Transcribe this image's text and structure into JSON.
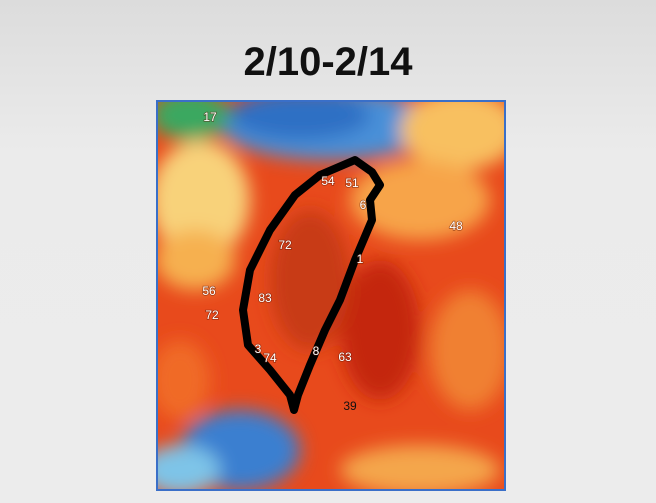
{
  "title": "2/10-2/14",
  "map": {
    "labels": [
      "17",
      "54",
      "51",
      "6",
      "72",
      "48",
      "1",
      "56",
      "83",
      "72",
      "3",
      "74",
      "8",
      "63",
      "39"
    ]
  }
}
